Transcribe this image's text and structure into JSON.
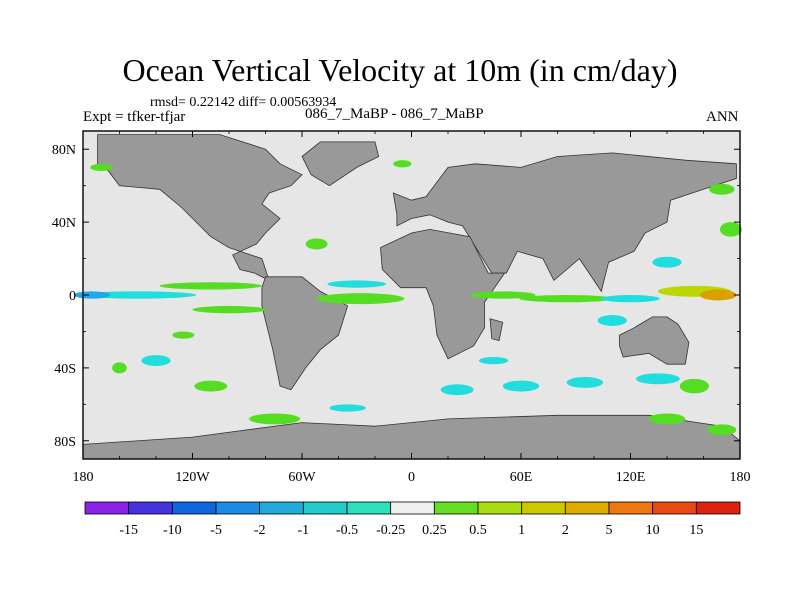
{
  "title": "Ocean Vertical Velocity at 10m (in cm/day)",
  "stats": "rmsd= 0.22142  diff= 0.00563934",
  "experiment": "Expt = tfker-tfjar",
  "case": "086_7_MaBP - 086_7_MaBP",
  "season": "ANN",
  "colors": {
    "ocean": "#e6e6e6",
    "land": "#999999",
    "positive_small": "#55dd22",
    "positive_mid": "#bcd700",
    "positive_high": "#d9a000",
    "negative_small": "#22dddd",
    "negative_mid": "#1fa9e8"
  },
  "chart_data": {
    "type": "heatmap",
    "projection": "cylindrical equidistant",
    "xlim": [
      -180,
      180
    ],
    "ylim": [
      -90,
      90
    ],
    "x_ticks": [
      {
        "value": -180,
        "label": "180"
      },
      {
        "value": -120,
        "label": "120W"
      },
      {
        "value": -60,
        "label": "60W"
      },
      {
        "value": 0,
        "label": "0"
      },
      {
        "value": 60,
        "label": "60E"
      },
      {
        "value": 120,
        "label": "120E"
      },
      {
        "value": 180,
        "label": "180"
      }
    ],
    "y_ticks": [
      {
        "value": 80,
        "label": "80N"
      },
      {
        "value": 40,
        "label": "40N"
      },
      {
        "value": 0,
        "label": "0"
      },
      {
        "value": -40,
        "label": "40S"
      },
      {
        "value": -80,
        "label": "80S"
      }
    ],
    "colorbar": {
      "labels": [
        "-15",
        "-10",
        "-5",
        "-2",
        "-1",
        "-0.5",
        "-0.25",
        "0.25",
        "0.5",
        "1",
        "2",
        "5",
        "10",
        "15"
      ],
      "colors": [
        "#8b22e8",
        "#4433dd",
        "#1166dd",
        "#1a8ce6",
        "#22aadd",
        "#22cccc",
        "#2ce0bb",
        "#f0f0f0",
        "#66dd22",
        "#aadd11",
        "#ccc800",
        "#ddaa00",
        "#ee7711",
        "#e84a11",
        "#dd2211"
      ]
    },
    "land": [
      [
        [
          -172,
          88
        ],
        [
          -105,
          88
        ],
        [
          -80,
          80
        ],
        [
          -72,
          72
        ],
        [
          -60,
          66
        ],
        [
          -66,
          60
        ],
        [
          -78,
          56
        ],
        [
          -82,
          50
        ],
        [
          -72,
          42
        ],
        [
          -80,
          34
        ],
        [
          -85,
          28
        ],
        [
          -98,
          22
        ],
        [
          -94,
          14
        ],
        [
          -86,
          12
        ],
        [
          -78,
          8
        ],
        [
          -82,
          20
        ],
        [
          -100,
          26
        ],
        [
          -110,
          32
        ],
        [
          -118,
          40
        ],
        [
          -126,
          48
        ],
        [
          -138,
          58
        ],
        [
          -160,
          60
        ],
        [
          -166,
          68
        ],
        [
          -172,
          72
        ]
      ],
      [
        [
          -50,
          84
        ],
        [
          -20,
          84
        ],
        [
          -18,
          76
        ],
        [
          -30,
          70
        ],
        [
          -45,
          60
        ],
        [
          -55,
          66
        ],
        [
          -60,
          76
        ]
      ],
      [
        [
          -80,
          10
        ],
        [
          -60,
          10
        ],
        [
          -50,
          2
        ],
        [
          -35,
          -6
        ],
        [
          -40,
          -22
        ],
        [
          -50,
          -30
        ],
        [
          -58,
          -40
        ],
        [
          -66,
          -52
        ],
        [
          -72,
          -50
        ],
        [
          -76,
          -30
        ],
        [
          -82,
          -6
        ],
        [
          -82,
          4
        ]
      ],
      [
        [
          -10,
          56
        ],
        [
          0,
          52
        ],
        [
          8,
          54
        ],
        [
          20,
          70
        ],
        [
          35,
          72
        ],
        [
          60,
          70
        ],
        [
          80,
          76
        ],
        [
          110,
          78
        ],
        [
          150,
          74
        ],
        [
          178,
          72
        ],
        [
          178,
          64
        ],
        [
          160,
          58
        ],
        [
          142,
          52
        ],
        [
          140,
          40
        ],
        [
          128,
          34
        ],
        [
          122,
          24
        ],
        [
          108,
          18
        ],
        [
          104,
          2
        ],
        [
          100,
          8
        ],
        [
          92,
          20
        ],
        [
          78,
          8
        ],
        [
          72,
          20
        ],
        [
          58,
          24
        ],
        [
          52,
          12
        ],
        [
          44,
          12
        ],
        [
          34,
          28
        ],
        [
          28,
          38
        ],
        [
          20,
          40
        ],
        [
          10,
          44
        ],
        [
          0,
          42
        ],
        [
          -8,
          38
        ],
        [
          -8,
          44
        ]
      ],
      [
        [
          -17,
          26
        ],
        [
          0,
          34
        ],
        [
          10,
          36
        ],
        [
          32,
          32
        ],
        [
          42,
          12
        ],
        [
          51,
          12
        ],
        [
          40,
          -4
        ],
        [
          40,
          -18
        ],
        [
          34,
          -28
        ],
        [
          20,
          -35
        ],
        [
          14,
          -22
        ],
        [
          12,
          -6
        ],
        [
          8,
          4
        ],
        [
          -6,
          4
        ],
        [
          -16,
          14
        ]
      ],
      [
        [
          43,
          -13
        ],
        [
          50,
          -15
        ],
        [
          48,
          -25
        ],
        [
          44,
          -24
        ]
      ],
      [
        [
          114,
          -22
        ],
        [
          122,
          -18
        ],
        [
          132,
          -12
        ],
        [
          140,
          -12
        ],
        [
          146,
          -16
        ],
        [
          152,
          -26
        ],
        [
          150,
          -38
        ],
        [
          140,
          -38
        ],
        [
          130,
          -32
        ],
        [
          116,
          -34
        ],
        [
          114,
          -28
        ]
      ],
      [
        [
          -180,
          -82
        ],
        [
          -120,
          -78
        ],
        [
          -60,
          -70
        ],
        [
          -20,
          -72
        ],
        [
          20,
          -68
        ],
        [
          80,
          -66
        ],
        [
          130,
          -66
        ],
        [
          170,
          -72
        ],
        [
          180,
          -80
        ],
        [
          180,
          -90
        ],
        [
          -180,
          -90
        ]
      ]
    ],
    "anomalies": [
      {
        "lon": -150,
        "lat": 0,
        "rx": 32,
        "ry": 2,
        "value": -0.5
      },
      {
        "lon": -175,
        "lat": 0,
        "rx": 10,
        "ry": 2,
        "value": -1
      },
      {
        "lon": -110,
        "lat": 5,
        "rx": 28,
        "ry": 2,
        "value": 0.5
      },
      {
        "lon": -100,
        "lat": -8,
        "rx": 20,
        "ry": 2,
        "value": 0.5
      },
      {
        "lon": -28,
        "lat": -2,
        "rx": 24,
        "ry": 3,
        "value": 0.5
      },
      {
        "lon": -30,
        "lat": 6,
        "rx": 16,
        "ry": 2,
        "value": -0.5
      },
      {
        "lon": 50,
        "lat": 0,
        "rx": 18,
        "ry": 2,
        "value": 0.5
      },
      {
        "lon": 85,
        "lat": -2,
        "rx": 26,
        "ry": 2,
        "value": 0.5
      },
      {
        "lon": 155,
        "lat": 2,
        "rx": 20,
        "ry": 3,
        "value": 1
      },
      {
        "lon": 168,
        "lat": 0,
        "rx": 10,
        "ry": 3,
        "value": 2
      },
      {
        "lon": 120,
        "lat": -2,
        "rx": 16,
        "ry": 2,
        "value": -0.5
      },
      {
        "lon": -52,
        "lat": 28,
        "rx": 6,
        "ry": 3,
        "value": 0.5
      },
      {
        "lon": -140,
        "lat": -36,
        "rx": 8,
        "ry": 3,
        "value": -0.5
      },
      {
        "lon": -110,
        "lat": -50,
        "rx": 9,
        "ry": 3,
        "value": 0.5
      },
      {
        "lon": -75,
        "lat": -68,
        "rx": 14,
        "ry": 3,
        "value": 0.5
      },
      {
        "lon": 170,
        "lat": -74,
        "rx": 8,
        "ry": 3,
        "value": 0.5
      },
      {
        "lon": 140,
        "lat": 18,
        "rx": 8,
        "ry": 3,
        "value": -0.5
      },
      {
        "lon": 175,
        "lat": 36,
        "rx": 6,
        "ry": 4,
        "value": 0.5
      },
      {
        "lon": 170,
        "lat": 58,
        "rx": 7,
        "ry": 3,
        "value": 0.5
      },
      {
        "lon": 25,
        "lat": -52,
        "rx": 9,
        "ry": 3,
        "value": -0.5
      },
      {
        "lon": 60,
        "lat": -50,
        "rx": 10,
        "ry": 3,
        "value": -0.5
      },
      {
        "lon": 95,
        "lat": -48,
        "rx": 10,
        "ry": 3,
        "value": -0.5
      },
      {
        "lon": 135,
        "lat": -46,
        "rx": 12,
        "ry": 3,
        "value": -0.5
      },
      {
        "lon": 155,
        "lat": -50,
        "rx": 8,
        "ry": 4,
        "value": 0.5
      },
      {
        "lon": -170,
        "lat": 70,
        "rx": 6,
        "ry": 2,
        "value": 0.5
      },
      {
        "lon": -160,
        "lat": -40,
        "rx": 4,
        "ry": 3,
        "value": 0.5
      },
      {
        "lon": -5,
        "lat": 72,
        "rx": 5,
        "ry": 2,
        "value": 0.5
      },
      {
        "lon": 140,
        "lat": -68,
        "rx": 10,
        "ry": 3,
        "value": 0.5
      },
      {
        "lon": 110,
        "lat": -14,
        "rx": 8,
        "ry": 3,
        "value": -0.5
      },
      {
        "lon": -35,
        "lat": -62,
        "rx": 10,
        "ry": 2,
        "value": -0.5
      },
      {
        "lon": 45,
        "lat": -36,
        "rx": 8,
        "ry": 2,
        "value": -0.5
      },
      {
        "lon": -125,
        "lat": -22,
        "rx": 6,
        "ry": 2,
        "value": 0.5
      }
    ]
  }
}
